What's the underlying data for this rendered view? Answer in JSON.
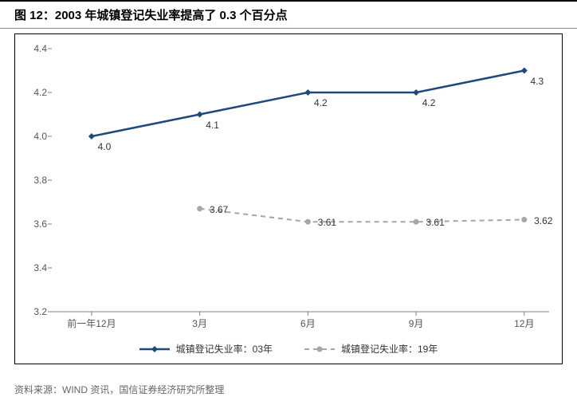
{
  "figure_title": "图 12：2003 年城镇登记失业率提高了 0.3 个百分点",
  "source_note": "资料来源：WIND 资讯，国信证券经济研究所整理",
  "chart": {
    "type": "line",
    "background_color": "#ffffff",
    "border_color": "#000000",
    "ylim": [
      3.2,
      4.4
    ],
    "ytick_step": 0.2,
    "y_ticks": [
      "3.2",
      "3.4",
      "3.6",
      "3.8",
      "4.0",
      "4.2",
      "4.4"
    ],
    "x_categories": [
      "前一年12月",
      "3月",
      "6月",
      "9月",
      "12月"
    ],
    "axis_color": "#808080",
    "tick_color": "#808080",
    "label_fontsize": 12,
    "series": [
      {
        "name": "城镇登记失业率：03年",
        "color": "#1f497d",
        "line_width": 2.5,
        "dash": "none",
        "marker": "diamond",
        "marker_size": 8,
        "data": [
          4.0,
          4.1,
          4.2,
          4.2,
          4.3
        ],
        "labels": [
          "4.0",
          "4.1",
          "4.2",
          "4.2",
          "4.3"
        ],
        "label_position": "below"
      },
      {
        "name": "城镇登记失业率：19年",
        "color": "#a6a6a6",
        "line_width": 2,
        "dash": "6,5",
        "marker": "circle",
        "marker_size": 7,
        "data": [
          null,
          3.67,
          3.61,
          3.61,
          3.62
        ],
        "labels": [
          "",
          "3.67",
          "3.61",
          "3.61",
          "3.62"
        ],
        "label_position": "right"
      }
    ],
    "legend_position": "bottom"
  }
}
